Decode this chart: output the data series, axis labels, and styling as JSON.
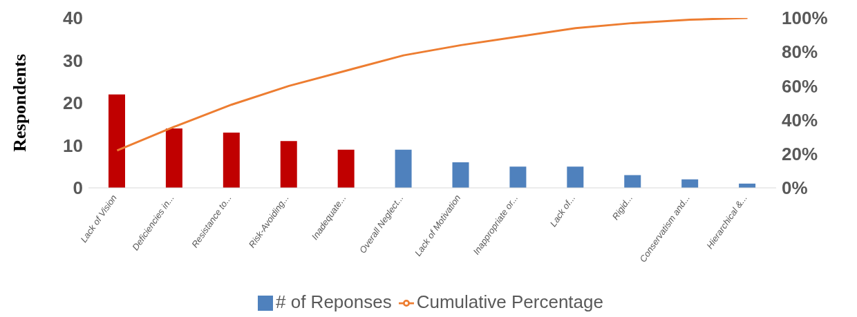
{
  "chart_data": {
    "type": "bar",
    "ylabel": "Respondents",
    "categories": [
      "Lack of Vision",
      "Deficiencies in...",
      "Resistance to...",
      "Risk-Avoiding...",
      "Inadequate...",
      "Overall Neglect...",
      "Lack of Motivation",
      "Inappropriate or...",
      "Lack of...",
      "Rigid...",
      "Conservatism and...",
      "Hierarchical &..."
    ],
    "series": [
      {
        "name": "# of Reponses",
        "color": "#4f81bd",
        "colors": [
          "#c00000",
          "#c00000",
          "#c00000",
          "#c00000",
          "#c00000",
          "#4f81bd",
          "#4f81bd",
          "#4f81bd",
          "#4f81bd",
          "#4f81bd",
          "#4f81bd",
          "#4f81bd"
        ],
        "values": [
          22,
          14,
          13,
          11,
          9,
          9,
          6,
          5,
          5,
          3,
          2,
          1
        ]
      },
      {
        "name": "Cumulative Percentage",
        "type": "line",
        "axis": "y2",
        "color": "#ed7d31",
        "values": [
          22,
          36,
          49,
          60,
          69,
          78,
          84,
          89,
          94,
          97,
          99,
          100
        ]
      }
    ],
    "ylim": [
      0,
      40
    ],
    "yticks": [
      0,
      10,
      20,
      30,
      40
    ],
    "y2lim": [
      0,
      100
    ],
    "y2ticks": [
      {
        "value": 0,
        "label": "0%"
      },
      {
        "value": 20,
        "label": "20%"
      },
      {
        "value": 40,
        "label": "40%"
      },
      {
        "value": 60,
        "label": "60%"
      },
      {
        "value": 80,
        "label": "80%"
      },
      {
        "value": 100,
        "label": "100%"
      }
    ],
    "grid": false,
    "legend": "bottom"
  }
}
